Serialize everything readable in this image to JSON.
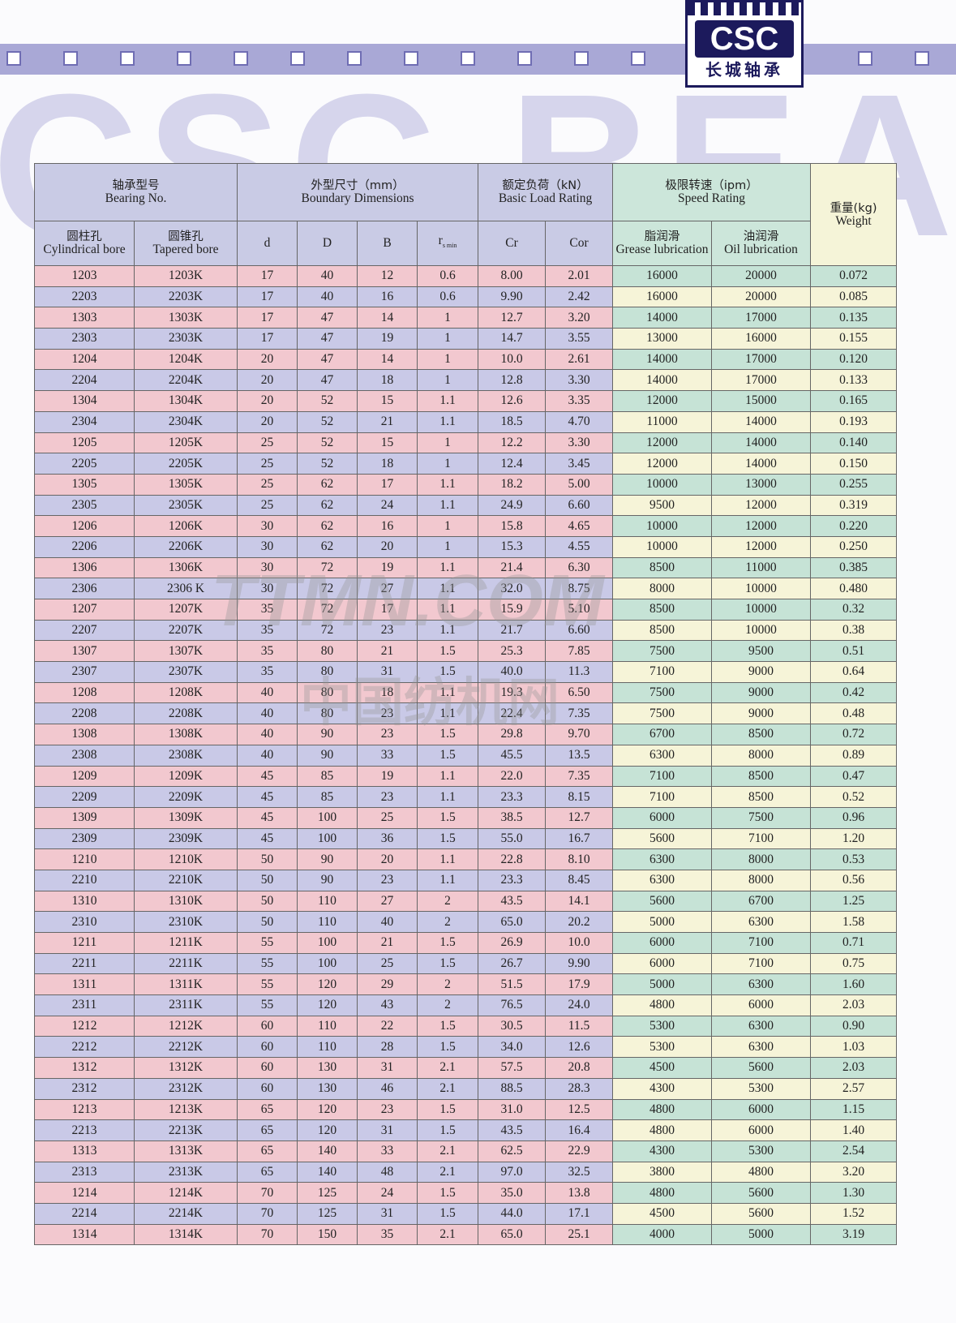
{
  "logo": {
    "mark": "CSC",
    "name": "长城轴承"
  },
  "watermark": {
    "brand": "CSC BEA",
    "site": "TTMN.COM",
    "site_zh": "中国纺机网"
  },
  "header": {
    "bearing_no": {
      "zh": "轴承型号",
      "en": "Bearing No."
    },
    "boundary": {
      "zh": "外型尺寸（mm）",
      "en": "Boundary Dimensions"
    },
    "load": {
      "zh": "额定负荷（kN）",
      "en": "Basic Load Rating"
    },
    "speed": {
      "zh": "极限转速（ipm）",
      "en": "Speed Rating"
    },
    "weight": {
      "zh": "重量(kg)",
      "en": "Weight"
    },
    "cylindrical": {
      "zh": "圆柱孔",
      "en": "Cylindrical bore"
    },
    "tapered": {
      "zh": "圆锥孔",
      "en": "Tapered bore"
    },
    "d": "d",
    "D": "D",
    "B": "B",
    "r": {
      "symbol": "r",
      "sub": "s min"
    },
    "Cr": "Cr",
    "Cor": "Cor",
    "grease": {
      "zh": "脂润滑",
      "en": "Grease lubrication"
    },
    "oil": {
      "zh": "油润滑",
      "en": "Oil lubrication"
    }
  },
  "table": {
    "rows": [
      [
        "1203",
        "1203K",
        "17",
        "40",
        "12",
        "0.6",
        "8.00",
        "2.01",
        "16000",
        "20000",
        "0.072"
      ],
      [
        "2203",
        "2203K",
        "17",
        "40",
        "16",
        "0.6",
        "9.90",
        "2.42",
        "16000",
        "20000",
        "0.085"
      ],
      [
        "1303",
        "1303K",
        "17",
        "47",
        "14",
        "1",
        "12.7",
        "3.20",
        "14000",
        "17000",
        "0.135"
      ],
      [
        "2303",
        "2303K",
        "17",
        "47",
        "19",
        "1",
        "14.7",
        "3.55",
        "13000",
        "16000",
        "0.155"
      ],
      [
        "1204",
        "1204K",
        "20",
        "47",
        "14",
        "1",
        "10.0",
        "2.61",
        "14000",
        "17000",
        "0.120"
      ],
      [
        "2204",
        "2204K",
        "20",
        "47",
        "18",
        "1",
        "12.8",
        "3.30",
        "14000",
        "17000",
        "0.133"
      ],
      [
        "1304",
        "1304K",
        "20",
        "52",
        "15",
        "1.1",
        "12.6",
        "3.35",
        "12000",
        "15000",
        "0.165"
      ],
      [
        "2304",
        "2304K",
        "20",
        "52",
        "21",
        "1.1",
        "18.5",
        "4.70",
        "11000",
        "14000",
        "0.193"
      ],
      [
        "1205",
        "1205K",
        "25",
        "52",
        "15",
        "1",
        "12.2",
        "3.30",
        "12000",
        "14000",
        "0.140"
      ],
      [
        "2205",
        "2205K",
        "25",
        "52",
        "18",
        "1",
        "12.4",
        "3.45",
        "12000",
        "14000",
        "0.150"
      ],
      [
        "1305",
        "1305K",
        "25",
        "62",
        "17",
        "1.1",
        "18.2",
        "5.00",
        "10000",
        "13000",
        "0.255"
      ],
      [
        "2305",
        "2305K",
        "25",
        "62",
        "24",
        "1.1",
        "24.9",
        "6.60",
        "9500",
        "12000",
        "0.319"
      ],
      [
        "1206",
        "1206K",
        "30",
        "62",
        "16",
        "1",
        "15.8",
        "4.65",
        "10000",
        "12000",
        "0.220"
      ],
      [
        "2206",
        "2206K",
        "30",
        "62",
        "20",
        "1",
        "15.3",
        "4.55",
        "10000",
        "12000",
        "0.250"
      ],
      [
        "1306",
        "1306K",
        "30",
        "72",
        "19",
        "1.1",
        "21.4",
        "6.30",
        "8500",
        "11000",
        "0.385"
      ],
      [
        "2306",
        "2306 K",
        "30",
        "72",
        "27",
        "1.1",
        "32.0",
        "8.75",
        "8000",
        "10000",
        "0.480"
      ],
      [
        "1207",
        "1207K",
        "35",
        "72",
        "17",
        "1.1",
        "15.9",
        "5.10",
        "8500",
        "10000",
        "0.32"
      ],
      [
        "2207",
        "2207K",
        "35",
        "72",
        "23",
        "1.1",
        "21.7",
        "6.60",
        "8500",
        "10000",
        "0.38"
      ],
      [
        "1307",
        "1307K",
        "35",
        "80",
        "21",
        "1.5",
        "25.3",
        "7.85",
        "7500",
        "9500",
        "0.51"
      ],
      [
        "2307",
        "2307K",
        "35",
        "80",
        "31",
        "1.5",
        "40.0",
        "11.3",
        "7100",
        "9000",
        "0.64"
      ],
      [
        "1208",
        "1208K",
        "40",
        "80",
        "18",
        "1.1",
        "19.3",
        "6.50",
        "7500",
        "9000",
        "0.42"
      ],
      [
        "2208",
        "2208K",
        "40",
        "80",
        "23",
        "1.1",
        "22.4",
        "7.35",
        "7500",
        "9000",
        "0.48"
      ],
      [
        "1308",
        "1308K",
        "40",
        "90",
        "23",
        "1.5",
        "29.8",
        "9.70",
        "6700",
        "8500",
        "0.72"
      ],
      [
        "2308",
        "2308K",
        "40",
        "90",
        "33",
        "1.5",
        "45.5",
        "13.5",
        "6300",
        "8000",
        "0.89"
      ],
      [
        "1209",
        "1209K",
        "45",
        "85",
        "19",
        "1.1",
        "22.0",
        "7.35",
        "7100",
        "8500",
        "0.47"
      ],
      [
        "2209",
        "2209K",
        "45",
        "85",
        "23",
        "1.1",
        "23.3",
        "8.15",
        "7100",
        "8500",
        "0.52"
      ],
      [
        "1309",
        "1309K",
        "45",
        "100",
        "25",
        "1.5",
        "38.5",
        "12.7",
        "6000",
        "7500",
        "0.96"
      ],
      [
        "2309",
        "2309K",
        "45",
        "100",
        "36",
        "1.5",
        "55.0",
        "16.7",
        "5600",
        "7100",
        "1.20"
      ],
      [
        "1210",
        "1210K",
        "50",
        "90",
        "20",
        "1.1",
        "22.8",
        "8.10",
        "6300",
        "8000",
        "0.53"
      ],
      [
        "2210",
        "2210K",
        "50",
        "90",
        "23",
        "1.1",
        "23.3",
        "8.45",
        "6300",
        "8000",
        "0.56"
      ],
      [
        "1310",
        "1310K",
        "50",
        "110",
        "27",
        "2",
        "43.5",
        "14.1",
        "5600",
        "6700",
        "1.25"
      ],
      [
        "2310",
        "2310K",
        "50",
        "110",
        "40",
        "2",
        "65.0",
        "20.2",
        "5000",
        "6300",
        "1.58"
      ],
      [
        "1211",
        "1211K",
        "55",
        "100",
        "21",
        "1.5",
        "26.9",
        "10.0",
        "6000",
        "7100",
        "0.71"
      ],
      [
        "2211",
        "2211K",
        "55",
        "100",
        "25",
        "1.5",
        "26.7",
        "9.90",
        "6000",
        "7100",
        "0.75"
      ],
      [
        "1311",
        "1311K",
        "55",
        "120",
        "29",
        "2",
        "51.5",
        "17.9",
        "5000",
        "6300",
        "1.60"
      ],
      [
        "2311",
        "2311K",
        "55",
        "120",
        "43",
        "2",
        "76.5",
        "24.0",
        "4800",
        "6000",
        "2.03"
      ],
      [
        "1212",
        "1212K",
        "60",
        "110",
        "22",
        "1.5",
        "30.5",
        "11.5",
        "5300",
        "6300",
        "0.90"
      ],
      [
        "2212",
        "2212K",
        "60",
        "110",
        "28",
        "1.5",
        "34.0",
        "12.6",
        "5300",
        "6300",
        "1.03"
      ],
      [
        "1312",
        "1312K",
        "60",
        "130",
        "31",
        "2.1",
        "57.5",
        "20.8",
        "4500",
        "5600",
        "2.03"
      ],
      [
        "2312",
        "2312K",
        "60",
        "130",
        "46",
        "2.1",
        "88.5",
        "28.3",
        "4300",
        "5300",
        "2.57"
      ],
      [
        "1213",
        "1213K",
        "65",
        "120",
        "23",
        "1.5",
        "31.0",
        "12.5",
        "4800",
        "6000",
        "1.15"
      ],
      [
        "2213",
        "2213K",
        "65",
        "120",
        "31",
        "1.5",
        "43.5",
        "16.4",
        "4800",
        "6000",
        "1.40"
      ],
      [
        "1313",
        "1313K",
        "65",
        "140",
        "33",
        "2.1",
        "62.5",
        "22.9",
        "4300",
        "5300",
        "2.54"
      ],
      [
        "2313",
        "2313K",
        "65",
        "140",
        "48",
        "2.1",
        "97.0",
        "32.5",
        "3800",
        "4800",
        "3.20"
      ],
      [
        "1214",
        "1214K",
        "70",
        "125",
        "24",
        "1.5",
        "35.0",
        "13.8",
        "4800",
        "5600",
        "1.30"
      ],
      [
        "2214",
        "2214K",
        "70",
        "125",
        "31",
        "1.5",
        "44.0",
        "17.1",
        "4500",
        "5600",
        "1.52"
      ],
      [
        "1314",
        "1314K",
        "70",
        "150",
        "35",
        "2.1",
        "65.0",
        "25.1",
        "4000",
        "5000",
        "3.19"
      ]
    ]
  }
}
